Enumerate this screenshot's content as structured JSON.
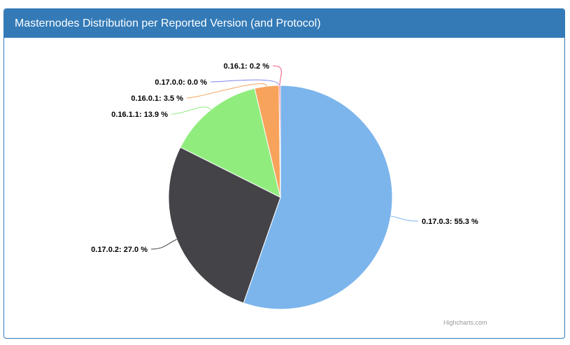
{
  "panel": {
    "title": "Masternodes Distribution per Reported Version (and Protocol)"
  },
  "credits": "Highcharts.com",
  "chart_data": {
    "type": "pie",
    "title": "",
    "slices": [
      {
        "label": "0.17.0.3",
        "value": 55.3,
        "color": "#7cb5ec",
        "display": "0.17.0.3: 55.3 %"
      },
      {
        "label": "0.17.0.2",
        "value": 27.0,
        "color": "#434348",
        "display": "0.17.0.2: 27.0 %"
      },
      {
        "label": "0.16.1.1",
        "value": 13.9,
        "color": "#90ed7d",
        "display": "0.16.1.1: 13.9 %"
      },
      {
        "label": "0.16.0.1",
        "value": 3.5,
        "color": "#f7a35c",
        "display": "0.16.0.1: 3.5 %"
      },
      {
        "label": "0.17.0.0",
        "value": 0.0,
        "color": "#8085e9",
        "display": "0.17.0.0: 0.0 %"
      },
      {
        "label": "0.16.1",
        "value": 0.2,
        "color": "#f15c80",
        "display": "0.16.1: 0.2 %"
      }
    ]
  }
}
